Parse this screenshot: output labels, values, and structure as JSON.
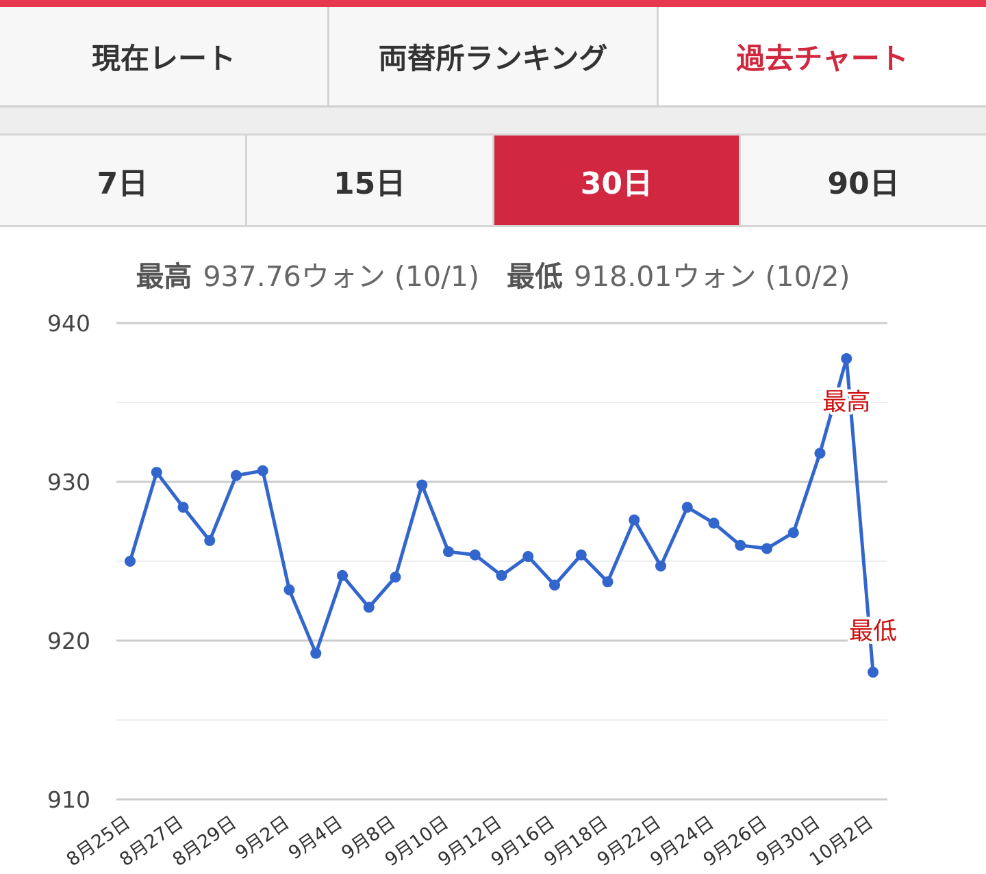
{
  "main_tabs": [
    {
      "label": "現在レート",
      "active": false
    },
    {
      "label": "両替所ランキング",
      "active": false
    },
    {
      "label": "過去チャート",
      "active": true
    }
  ],
  "period_tabs": [
    {
      "label": "7日",
      "active": false
    },
    {
      "label": "15日",
      "active": false
    },
    {
      "label": "30日",
      "active": true
    },
    {
      "label": "90日",
      "active": false
    }
  ],
  "summary": {
    "high_label": "最高",
    "high_value": "937.76ウォン (10/1)",
    "low_label": "最低",
    "low_value": "918.01ウォン (10/2)"
  },
  "colors": {
    "accent": "#d22740",
    "top_bar": "#e8384f",
    "line": "#3366cc",
    "marker_text": "#cc1111"
  },
  "chart_data": {
    "type": "line",
    "title": "",
    "xlabel": "",
    "ylabel": "",
    "ylim": [
      910,
      940
    ],
    "yticks": [
      910,
      920,
      930,
      940
    ],
    "minor_gridlines": [
      915,
      925,
      935
    ],
    "x_tick_labels": [
      "8月25日",
      "8月27日",
      "8月29日",
      "9月2日",
      "9月4日",
      "9月8日",
      "9月10日",
      "9月12日",
      "9月16日",
      "9月18日",
      "9月22日",
      "9月24日",
      "9月26日",
      "9月30日",
      "10月2日"
    ],
    "x": [
      "8月25日",
      "8月26日",
      "8月27日",
      "8月28日",
      "8月29日",
      "8月30日",
      "9月2日",
      "9月3日",
      "9月4日",
      "9月5日",
      "9月8日",
      "9月9日",
      "9月10日",
      "9月11日",
      "9月12日",
      "9月15日",
      "9月16日",
      "9月17日",
      "9月18日",
      "9月19日",
      "9月22日",
      "9月23日",
      "9月24日",
      "9月25日",
      "9月26日",
      "9月29日",
      "9月30日",
      "10月1日",
      "10月2日"
    ],
    "series": [
      {
        "values": [
          925.0,
          930.6,
          928.4,
          926.3,
          930.4,
          930.7,
          923.2,
          919.2,
          924.1,
          922.1,
          924.0,
          929.8,
          925.6,
          925.4,
          924.1,
          925.3,
          923.5,
          925.4,
          923.7,
          927.6,
          924.7,
          928.4,
          927.4,
          926.0,
          925.8,
          926.8,
          931.8,
          937.76,
          918.01
        ]
      }
    ],
    "annotations": [
      {
        "text": "最高",
        "x": "10月1日",
        "y": 937.76
      },
      {
        "text": "最低",
        "x": "10月2日",
        "y": 918.01
      }
    ],
    "grid": true,
    "legend": "none"
  }
}
